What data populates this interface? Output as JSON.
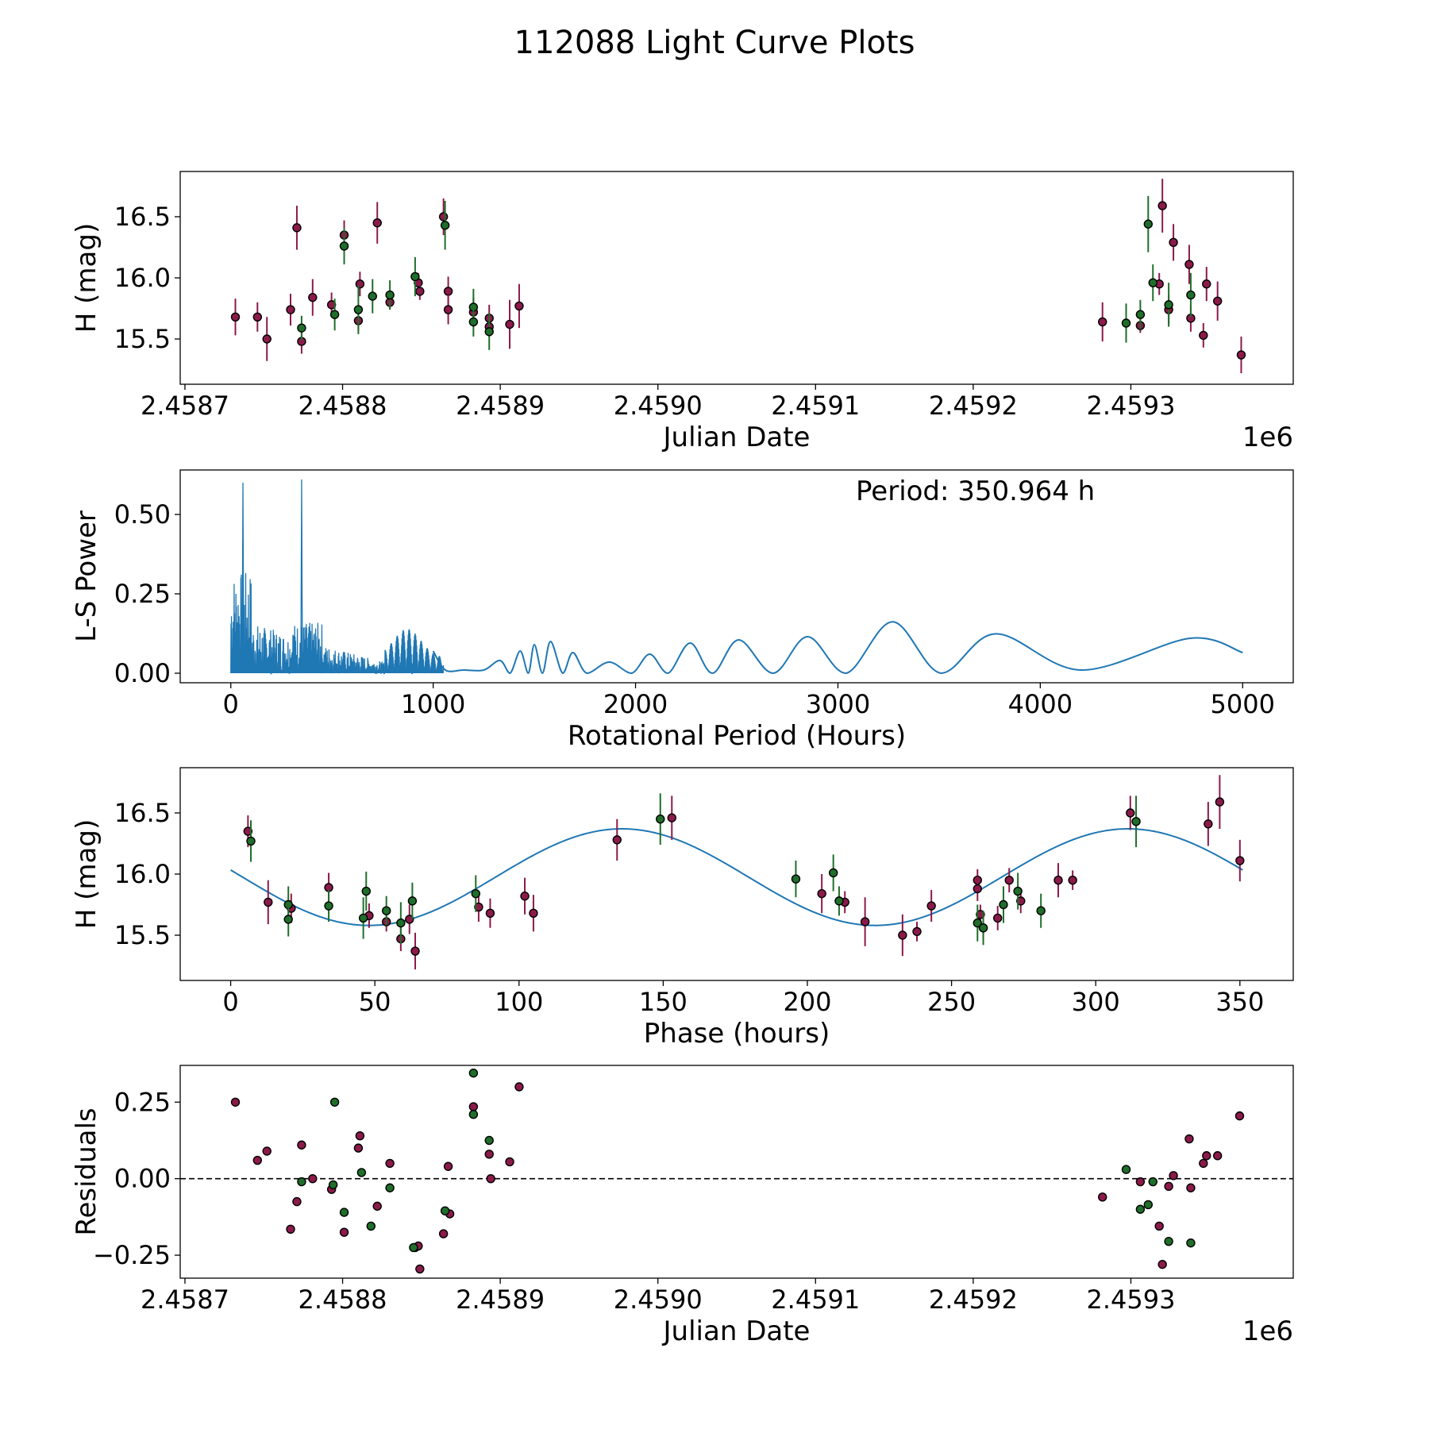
{
  "figure": {
    "title": "112088 Light Curve Plots",
    "colors": {
      "red": "#8b1a4a",
      "green": "#1f6e2a",
      "line": "#1f77b4",
      "edge": "#000000"
    }
  },
  "chart_data": [
    {
      "id": "p1",
      "type": "scatter",
      "title": "",
      "xlabel": "Julian Date",
      "ylabel": "H (mag)",
      "offset_label": "1e6",
      "xlim": [
        2458697,
        2459403
      ],
      "ylim": [
        15.13,
        16.87
      ],
      "xticks": [
        2458700,
        2458800,
        2458900,
        2459000,
        2459100,
        2459200,
        2459300
      ],
      "xtick_labels": [
        "2.4587",
        "2.4588",
        "2.4589",
        "2.4590",
        "2.4591",
        "2.4592",
        "2.4593"
      ],
      "yticks": [
        15.5,
        16.0,
        16.5
      ],
      "ytick_labels": [
        "15.5",
        "16.0",
        "16.5"
      ],
      "series": [
        {
          "name": "red",
          "color": "red",
          "points": [
            [
              2458732,
              15.68,
              0.15
            ],
            [
              2458746,
              15.68,
              0.12
            ],
            [
              2458752,
              15.5,
              0.18
            ],
            [
              2458767,
              15.74,
              0.13
            ],
            [
              2458771,
              16.41,
              0.18
            ],
            [
              2458774,
              15.48,
              0.1
            ],
            [
              2458781,
              15.84,
              0.15
            ],
            [
              2458793,
              15.78,
              0.1
            ],
            [
              2458801,
              16.35,
              0.12
            ],
            [
              2458810,
              15.65,
              0.08
            ],
            [
              2458811,
              15.95,
              0.1
            ],
            [
              2458822,
              16.45,
              0.17
            ],
            [
              2458830,
              15.8,
              0.06
            ],
            [
              2458848,
              15.96,
              0.08
            ],
            [
              2458849,
              15.89,
              0.07
            ],
            [
              2458864,
              16.5,
              0.15
            ],
            [
              2458867,
              15.89,
              0.12
            ],
            [
              2458867,
              15.74,
              0.12
            ],
            [
              2458883,
              15.72,
              0.12
            ],
            [
              2458893,
              15.67,
              0.11
            ],
            [
              2458893,
              15.6,
              0.08
            ],
            [
              2458906,
              15.62,
              0.2
            ],
            [
              2458912,
              15.77,
              0.18
            ],
            [
              2459282,
              15.64,
              0.16
            ],
            [
              2459306,
              15.61,
              0.06
            ],
            [
              2459318,
              15.95,
              0.09
            ],
            [
              2459320,
              16.59,
              0.22
            ],
            [
              2459324,
              15.74,
              0.12
            ],
            [
              2459327,
              16.29,
              0.15
            ],
            [
              2459337,
              16.11,
              0.16
            ],
            [
              2459338,
              15.67,
              0.11
            ],
            [
              2459346,
              15.53,
              0.1
            ],
            [
              2459348,
              15.95,
              0.14
            ],
            [
              2459355,
              15.81,
              0.16
            ],
            [
              2459370,
              15.37,
              0.15
            ]
          ]
        },
        {
          "name": "green",
          "color": "green",
          "points": [
            [
              2458774,
              15.59,
              0.1
            ],
            [
              2458795,
              15.7,
              0.13
            ],
            [
              2458801,
              16.26,
              0.15
            ],
            [
              2458810,
              15.74,
              0.2
            ],
            [
              2458819,
              15.85,
              0.14
            ],
            [
              2458830,
              15.86,
              0.12
            ],
            [
              2458846,
              16.01,
              0.16
            ],
            [
              2458865,
              16.43,
              0.2
            ],
            [
              2458883,
              15.76,
              0.15
            ],
            [
              2458883,
              15.64,
              0.12
            ],
            [
              2458893,
              15.56,
              0.15
            ],
            [
              2459297,
              15.63,
              0.16
            ],
            [
              2459306,
              15.7,
              0.12
            ],
            [
              2459311,
              16.44,
              0.23
            ],
            [
              2459314,
              15.96,
              0.15
            ],
            [
              2459324,
              15.78,
              0.18
            ],
            [
              2459338,
              15.86,
              0.18
            ]
          ]
        }
      ]
    },
    {
      "id": "p2",
      "type": "line",
      "title": "",
      "xlabel": "Rotational Period (Hours)",
      "ylabel": "L-S Power",
      "annotation": "Period: 350.964 h",
      "xlim": [
        -250,
        5250
      ],
      "ylim": [
        -0.03,
        0.64
      ],
      "xticks": [
        0,
        1000,
        2000,
        3000,
        4000,
        5000
      ],
      "xtick_labels": [
        "0",
        "1000",
        "2000",
        "3000",
        "4000",
        "5000"
      ],
      "yticks": [
        0.0,
        0.25,
        0.5
      ],
      "ytick_labels": [
        "0.00",
        "0.25",
        "0.50"
      ],
      "noise_region_end": 1050,
      "peaks": [
        [
          60,
          0.6
        ],
        [
          350,
          0.61
        ]
      ],
      "series": [
        {
          "name": "periodogram",
          "color": "line",
          "points": [
            [
              1000,
              0.07
            ],
            [
              1060,
              0.01
            ],
            [
              1150,
              0.01
            ],
            [
              1250,
              0.01
            ],
            [
              1330,
              0.04
            ],
            [
              1380,
              0.0
            ],
            [
              1430,
              0.07
            ],
            [
              1470,
              0.0
            ],
            [
              1500,
              0.09
            ],
            [
              1540,
              0.0
            ],
            [
              1580,
              0.1
            ],
            [
              1640,
              0.0
            ],
            [
              1690,
              0.065
            ],
            [
              1760,
              0.0
            ],
            [
              1870,
              0.035
            ],
            [
              1980,
              0.0
            ],
            [
              2070,
              0.06
            ],
            [
              2160,
              0.0
            ],
            [
              2270,
              0.095
            ],
            [
              2380,
              0.0
            ],
            [
              2510,
              0.105
            ],
            [
              2680,
              0.0
            ],
            [
              2850,
              0.115
            ],
            [
              3040,
              0.0
            ],
            [
              3270,
              0.162
            ],
            [
              3510,
              0.0
            ],
            [
              3780,
              0.124
            ],
            [
              4200,
              0.01
            ],
            [
              4740,
              0.11
            ],
            [
              5000,
              0.065
            ]
          ]
        }
      ]
    },
    {
      "id": "p3",
      "type": "scatter",
      "title": "",
      "xlabel": "Phase (hours)",
      "ylabel": "H (mag)",
      "xlim": [
        -17.5,
        368.5
      ],
      "ylim": [
        15.13,
        16.87
      ],
      "xticks": [
        0,
        50,
        100,
        150,
        200,
        250,
        300,
        350
      ],
      "xtick_labels": [
        "0",
        "50",
        "100",
        "150",
        "200",
        "250",
        "300",
        "350"
      ],
      "yticks": [
        15.5,
        16.0,
        16.5
      ],
      "ytick_labels": [
        "15.5",
        "16.0",
        "16.5"
      ],
      "model": {
        "mean": 15.975,
        "amplitude": 0.395,
        "period": 175.48,
        "phase_offset": 48.0,
        "x_range": [
          0,
          350.964
        ]
      },
      "series": [
        {
          "name": "red",
          "color": "red",
          "points": [
            [
              6,
              16.35,
              0.13
            ],
            [
              13,
              15.77,
              0.18
            ],
            [
              21,
              15.72,
              0.12
            ],
            [
              34,
              15.89,
              0.12
            ],
            [
              48,
              15.66,
              0.1
            ],
            [
              54,
              15.61,
              0.08
            ],
            [
              59,
              15.47,
              0.1
            ],
            [
              62,
              15.63,
              0.12
            ],
            [
              64,
              15.37,
              0.15
            ],
            [
              86,
              15.73,
              0.12
            ],
            [
              90,
              15.68,
              0.12
            ],
            [
              102,
              15.82,
              0.15
            ],
            [
              105,
              15.68,
              0.15
            ],
            [
              134,
              16.28,
              0.17
            ],
            [
              153,
              16.46,
              0.18
            ],
            [
              205,
              15.84,
              0.16
            ],
            [
              213,
              15.77,
              0.09
            ],
            [
              220,
              15.61,
              0.2
            ],
            [
              233,
              15.5,
              0.17
            ],
            [
              238,
              15.53,
              0.08
            ],
            [
              243,
              15.74,
              0.13
            ],
            [
              259,
              15.95,
              0.09
            ],
            [
              259,
              15.88,
              0.1
            ],
            [
              260,
              15.67,
              0.08
            ],
            [
              261,
              15.56,
              0.1
            ],
            [
              266,
              15.64,
              0.1
            ],
            [
              270,
              15.95,
              0.1
            ],
            [
              274,
              15.78,
              0.1
            ],
            [
              287,
              15.95,
              0.14
            ],
            [
              292,
              15.95,
              0.08
            ],
            [
              312,
              16.5,
              0.14
            ],
            [
              339,
              16.41,
              0.18
            ],
            [
              343,
              16.59,
              0.22
            ],
            [
              350,
              16.11,
              0.17
            ]
          ]
        },
        {
          "name": "green",
          "color": "green",
          "points": [
            [
              7,
              16.27,
              0.17
            ],
            [
              20,
              15.75,
              0.15
            ],
            [
              20,
              15.63,
              0.14
            ],
            [
              34,
              15.74,
              0.13
            ],
            [
              46,
              15.64,
              0.17
            ],
            [
              47,
              15.86,
              0.16
            ],
            [
              54,
              15.7,
              0.12
            ],
            [
              59,
              15.6,
              0.17
            ],
            [
              63,
              15.78,
              0.15
            ],
            [
              85,
              15.84,
              0.15
            ],
            [
              149,
              16.45,
              0.21
            ],
            [
              196,
              15.96,
              0.15
            ],
            [
              209,
              16.01,
              0.15
            ],
            [
              211,
              15.78,
              0.12
            ],
            [
              259,
              15.6,
              0.15
            ],
            [
              261,
              15.56,
              0.14
            ],
            [
              268,
              15.75,
              0.15
            ],
            [
              273,
              15.86,
              0.15
            ],
            [
              281,
              15.7,
              0.14
            ],
            [
              314,
              16.43,
              0.21
            ]
          ]
        }
      ]
    },
    {
      "id": "p4",
      "type": "scatter",
      "title": "",
      "xlabel": "Julian Date",
      "ylabel": "Residuals",
      "offset_label": "1e6",
      "xlim": [
        2458697,
        2459403
      ],
      "ylim": [
        -0.325,
        0.37
      ],
      "hline": 0,
      "xticks": [
        2458700,
        2458800,
        2458900,
        2459000,
        2459100,
        2459200,
        2459300
      ],
      "xtick_labels": [
        "2.4587",
        "2.4588",
        "2.4589",
        "2.4590",
        "2.4591",
        "2.4592",
        "2.4593"
      ],
      "yticks": [
        -0.25,
        0.0,
        0.25
      ],
      "ytick_labels": [
        "−0.25",
        "0.00",
        "0.25"
      ],
      "series": [
        {
          "name": "red",
          "color": "red",
          "points": [
            [
              2458732,
              0.25
            ],
            [
              2458746,
              0.06
            ],
            [
              2458752,
              0.09
            ],
            [
              2458767,
              -0.165
            ],
            [
              2458771,
              -0.075
            ],
            [
              2458774,
              0.11
            ],
            [
              2458781,
              0.0
            ],
            [
              2458793,
              -0.035
            ],
            [
              2458801,
              -0.175
            ],
            [
              2458810,
              0.1
            ],
            [
              2458811,
              0.14
            ],
            [
              2458822,
              -0.09
            ],
            [
              2458830,
              0.05
            ],
            [
              2458846,
              -0.225
            ],
            [
              2458848,
              -0.22
            ],
            [
              2458849,
              -0.295
            ],
            [
              2458864,
              -0.18
            ],
            [
              2458867,
              0.04
            ],
            [
              2458868,
              -0.115
            ],
            [
              2458883,
              0.235
            ],
            [
              2458893,
              0.08
            ],
            [
              2458894,
              0.0
            ],
            [
              2458906,
              0.055
            ],
            [
              2458912,
              0.3
            ],
            [
              2459282,
              -0.06
            ],
            [
              2459306,
              -0.01
            ],
            [
              2459318,
              -0.155
            ],
            [
              2459320,
              -0.28
            ],
            [
              2459324,
              -0.025
            ],
            [
              2459327,
              0.01
            ],
            [
              2459337,
              0.13
            ],
            [
              2459338,
              -0.03
            ],
            [
              2459346,
              0.05
            ],
            [
              2459348,
              0.075
            ],
            [
              2459355,
              0.075
            ],
            [
              2459369,
              0.205
            ]
          ]
        },
        {
          "name": "green",
          "color": "green",
          "points": [
            [
              2458774,
              -0.01
            ],
            [
              2458794,
              -0.02
            ],
            [
              2458795,
              0.25
            ],
            [
              2458801,
              -0.11
            ],
            [
              2458812,
              0.02
            ],
            [
              2458818,
              -0.155
            ],
            [
              2458830,
              -0.03
            ],
            [
              2458845,
              -0.225
            ],
            [
              2458865,
              -0.105
            ],
            [
              2458883,
              0.345
            ],
            [
              2458883,
              0.21
            ],
            [
              2458893,
              0.125
            ],
            [
              2459297,
              0.03
            ],
            [
              2459306,
              -0.1
            ],
            [
              2459311,
              -0.085
            ],
            [
              2459314,
              -0.01
            ],
            [
              2459324,
              -0.205
            ],
            [
              2459338,
              -0.21
            ]
          ]
        }
      ]
    }
  ]
}
